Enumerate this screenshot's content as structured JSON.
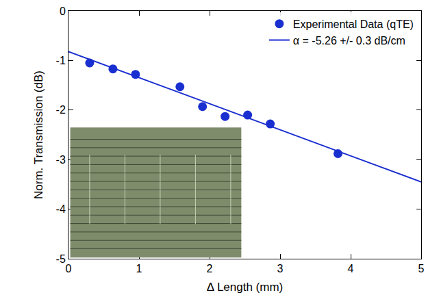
{
  "chart_data": {
    "type": "scatter",
    "xlabel": "Δ Length (mm)",
    "ylabel": "Norm. Transmission (dB)",
    "xlim": [
      0,
      5
    ],
    "ylim": [
      -5,
      0
    ],
    "xticks": [
      0,
      1,
      2,
      3,
      4,
      5
    ],
    "yticks": [
      -5,
      -4,
      -3,
      -2,
      -1,
      0
    ],
    "grid": false,
    "legend": "top right",
    "series": [
      {
        "name": "Experimental Data (qTE)",
        "type": "scatter",
        "marker": "circle",
        "color": "#1a2fd0",
        "x": [
          0.3,
          0.63,
          0.95,
          1.58,
          1.9,
          2.22,
          2.54,
          2.86,
          3.82
        ],
        "values": [
          -1.05,
          -1.17,
          -1.28,
          -1.53,
          -1.93,
          -2.13,
          -2.1,
          -2.28,
          -2.88
        ]
      },
      {
        "name": "α = -5.26 +/- 0.3 dB/cm",
        "type": "line",
        "line_style": "solid",
        "color": "#1a2fd0",
        "x": [
          0,
          5
        ],
        "values": [
          -0.82,
          -3.45
        ]
      }
    ]
  }
}
